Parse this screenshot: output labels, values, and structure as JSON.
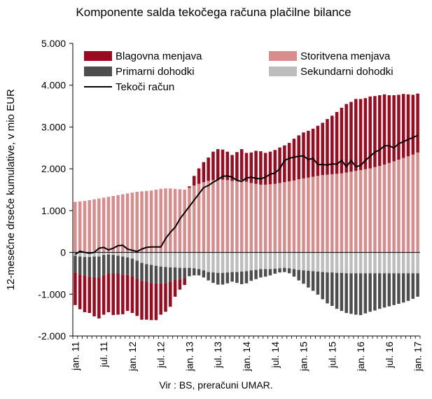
{
  "chart_data": {
    "type": "bar",
    "title": "Komponente salda tekočega računa plačilne bilance",
    "ylabel": "12-mesečne drseče kumulative, v mio EUR",
    "source": "Vir : BS, preračuni  UMAR.",
    "ylim": [
      -2000,
      5000
    ],
    "yticks": [
      -2000,
      -1000,
      0,
      1000,
      2000,
      3000,
      4000,
      5000
    ],
    "ytick_labels": [
      "-2.000",
      "-1.000",
      "0",
      "1.000",
      "2.000",
      "3.000",
      "4.000",
      "5.000"
    ],
    "xtick_labels": [
      "jan. 11",
      "jul. 11",
      "jan. 12",
      "jul. 12",
      "jan. 13",
      "jul. 13",
      "jan. 14",
      "jul. 14",
      "jan. 15",
      "jul. 15",
      "jan. 16",
      "jul. 16",
      "jan. 17"
    ],
    "xtick_index": [
      0,
      6,
      12,
      18,
      24,
      30,
      36,
      42,
      48,
      54,
      60,
      66,
      72
    ],
    "legend_position": "top",
    "grid": false,
    "colors": {
      "Blagovna menjava": "#9b0a1e",
      "Storitvena menjava": "#d98c8c",
      "Primarni dohodki": "#4d4d4d",
      "Sekundarni dohodki": "#bdbdbd",
      "Tekoči račun": "#000000"
    },
    "series": [
      {
        "name": "Blagovna menjava",
        "type": "bar",
        "values": [
          -780,
          -830,
          -870,
          -870,
          -940,
          -980,
          -950,
          -920,
          -990,
          -980,
          -950,
          -860,
          -880,
          -890,
          -930,
          -910,
          -890,
          -880,
          -750,
          -690,
          -590,
          -400,
          -240,
          -160,
          30,
          230,
          370,
          480,
          560,
          680,
          730,
          720,
          680,
          620,
          680,
          740,
          690,
          730,
          790,
          800,
          760,
          780,
          810,
          850,
          880,
          920,
          1000,
          1050,
          1100,
          1120,
          1150,
          1200,
          1250,
          1330,
          1400,
          1480,
          1570,
          1640,
          1670,
          1720,
          1700,
          1700,
          1720,
          1700,
          1690,
          1680,
          1620,
          1580,
          1550,
          1530,
          1480,
          1430,
          1410
        ]
      },
      {
        "name": "Storitvena menjava",
        "type": "bar",
        "values": [
          1210,
          1220,
          1230,
          1250,
          1270,
          1290,
          1310,
          1330,
          1350,
          1370,
          1390,
          1410,
          1430,
          1450,
          1460,
          1470,
          1480,
          1500,
          1520,
          1530,
          1530,
          1520,
          1510,
          1500,
          1550,
          1600,
          1640,
          1680,
          1710,
          1730,
          1740,
          1740,
          1730,
          1710,
          1720,
          1730,
          1690,
          1660,
          1640,
          1620,
          1620,
          1630,
          1640,
          1660,
          1680,
          1700,
          1720,
          1750,
          1770,
          1790,
          1810,
          1830,
          1850,
          1860,
          1870,
          1880,
          1890,
          1910,
          1930,
          1950,
          1970,
          1990,
          2010,
          2040,
          2070,
          2100,
          2140,
          2180,
          2220,
          2260,
          2300,
          2340,
          2390
        ]
      },
      {
        "name": "Primarni dohodki",
        "type": "bar",
        "values": [
          -400,
          -430,
          -450,
          -470,
          -490,
          -500,
          -480,
          -460,
          -450,
          -430,
          -430,
          -420,
          -420,
          -430,
          -430,
          -420,
          -430,
          -420,
          -400,
          -380,
          -350,
          -300,
          -280,
          -250,
          -200,
          -170,
          -150,
          -170,
          -200,
          -250,
          -280,
          -280,
          -260,
          -230,
          -260,
          -300,
          -290,
          -250,
          -220,
          -200,
          -180,
          -150,
          -120,
          -100,
          -100,
          -120,
          -180,
          -250,
          -320,
          -400,
          -470,
          -550,
          -650,
          -740,
          -800,
          -860,
          -910,
          -950,
          -970,
          -990,
          -1000,
          -960,
          -920,
          -890,
          -850,
          -820,
          -790,
          -760,
          -730,
          -700,
          -660,
          -610,
          -560
        ]
      },
      {
        "name": "Sekundarni dohodki",
        "type": "bar",
        "values": [
          -80,
          -100,
          -110,
          -110,
          -100,
          -100,
          -60,
          -50,
          -60,
          -80,
          -100,
          -120,
          -150,
          -200,
          -250,
          -280,
          -300,
          -320,
          -340,
          -350,
          -360,
          -360,
          -370,
          -370,
          -370,
          -380,
          -400,
          -430,
          -470,
          -480,
          -490,
          -490,
          -480,
          -470,
          -470,
          -460,
          -450,
          -430,
          -420,
          -400,
          -400,
          -400,
          -390,
          -380,
          -370,
          -380,
          -400,
          -420,
          -430,
          -440,
          -450,
          -460,
          -470,
          -480,
          -480,
          -490,
          -490,
          -500,
          -500,
          -500,
          -500,
          -500,
          -500,
          -500,
          -500,
          -500,
          -500,
          -500,
          -500,
          -500,
          -500,
          -500,
          -500
        ]
      },
      {
        "name": "Tekoči račun",
        "type": "line",
        "values": [
          -50,
          30,
          0,
          -20,
          0,
          100,
          120,
          60,
          100,
          160,
          170,
          80,
          50,
          20,
          80,
          120,
          130,
          130,
          130,
          330,
          480,
          600,
          800,
          950,
          1100,
          1250,
          1400,
          1550,
          1600,
          1680,
          1740,
          1820,
          1830,
          1800,
          1720,
          1700,
          1780,
          1800,
          1770,
          1760,
          1800,
          1870,
          1900,
          2000,
          2200,
          2250,
          2280,
          2300,
          2310,
          2220,
          2250,
          2100,
          2100,
          2090,
          2120,
          2110,
          2200,
          2050,
          2200,
          2050,
          2080,
          2200,
          2300,
          2400,
          2450,
          2550,
          2550,
          2500,
          2600,
          2650,
          2700,
          2750,
          2800
        ]
      }
    ]
  }
}
